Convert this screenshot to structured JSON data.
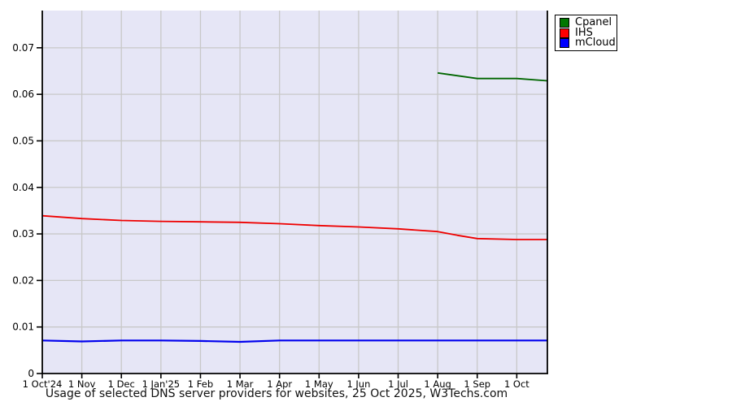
{
  "page": {
    "background": "#ffffff"
  },
  "chart_data": {
    "type": "line",
    "title": "Usage of selected DNS server providers for websites, 25 Oct 2025, W3Techs.com",
    "xlabel": "",
    "ylabel": "",
    "plot_bg": "#e6e6f6",
    "grid_color": "#c8c8c8",
    "axis_color": "#000000",
    "tick_label_color": "#000000",
    "ylim": [
      0,
      0.078
    ],
    "x_max_month": 12.774,
    "y_ticks": [
      {
        "v": 0.07,
        "label": "0.07"
      },
      {
        "v": 0.06,
        "label": "0.06"
      },
      {
        "v": 0.05,
        "label": "0.05"
      },
      {
        "v": 0.04,
        "label": "0.04"
      },
      {
        "v": 0.03,
        "label": "0.03"
      },
      {
        "v": 0.02,
        "label": "0.02"
      },
      {
        "v": 0.01,
        "label": "0.01"
      },
      {
        "v": 0,
        "label": "0"
      }
    ],
    "x_ticks": [
      {
        "m": 0,
        "label": "1 Oct'24"
      },
      {
        "m": 1,
        "label": "1 Nov"
      },
      {
        "m": 2,
        "label": "1 Dec"
      },
      {
        "m": 3,
        "label": "1 Jan'25"
      },
      {
        "m": 4,
        "label": "1 Feb"
      },
      {
        "m": 5,
        "label": "1 Mar"
      },
      {
        "m": 6,
        "label": "1 Apr"
      },
      {
        "m": 7,
        "label": "1 May"
      },
      {
        "m": 8,
        "label": "1 Jun"
      },
      {
        "m": 9,
        "label": "1 Jul"
      },
      {
        "m": 10,
        "label": "1 Aug"
      },
      {
        "m": 11,
        "label": "1 Sep"
      },
      {
        "m": 12,
        "label": "1 Oct"
      }
    ],
    "legend_position": "top-right",
    "series": [
      {
        "name": "Cpanel",
        "color": "#006600",
        "swatch_color": "#007700",
        "line_width": 1.8,
        "points": [
          [
            10,
            0.0646
          ],
          [
            11,
            0.0634
          ],
          [
            12,
            0.0634
          ],
          [
            12.774,
            0.0629
          ]
        ]
      },
      {
        "name": "IHS",
        "color": "#ee0000",
        "swatch_color": "#ff0000",
        "line_width": 1.8,
        "points": [
          [
            0,
            0.0339
          ],
          [
            1,
            0.0333
          ],
          [
            2,
            0.0329
          ],
          [
            3,
            0.0327
          ],
          [
            4,
            0.0326
          ],
          [
            5,
            0.0325
          ],
          [
            6,
            0.0322
          ],
          [
            7,
            0.0318
          ],
          [
            8,
            0.0315
          ],
          [
            9,
            0.0311
          ],
          [
            10,
            0.0305
          ],
          [
            10.5,
            0.0297
          ],
          [
            11,
            0.029
          ],
          [
            12,
            0.0288
          ],
          [
            12.774,
            0.0288
          ]
        ]
      },
      {
        "name": "mCloud",
        "color": "#0000ee",
        "swatch_color": "#0000ff",
        "line_width": 2.2,
        "points": [
          [
            0,
            0.0071
          ],
          [
            1,
            0.0069
          ],
          [
            2,
            0.0071
          ],
          [
            3,
            0.0071
          ],
          [
            4,
            0.007
          ],
          [
            5,
            0.0068
          ],
          [
            6,
            0.0071
          ],
          [
            7,
            0.0071
          ],
          [
            8,
            0.0071
          ],
          [
            9,
            0.0071
          ],
          [
            10,
            0.0071
          ],
          [
            11,
            0.0071
          ],
          [
            12,
            0.0071
          ],
          [
            12.774,
            0.0071
          ]
        ]
      }
    ]
  }
}
